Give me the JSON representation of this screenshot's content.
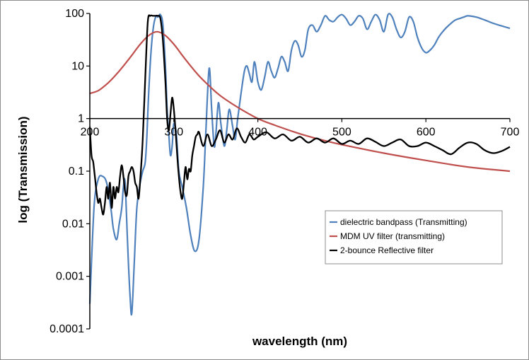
{
  "chart_data": {
    "type": "line",
    "title": "",
    "xlabel": "wavelength (nm)",
    "ylabel": "log (Transmission)",
    "xlim": [
      200,
      700
    ],
    "ylim": [
      0.0001,
      100
    ],
    "yscale": "log",
    "x_ticks": [
      "200",
      "300",
      "400",
      "500",
      "600",
      "700"
    ],
    "y_ticks": [
      "0.0001",
      "0.001",
      "0.01",
      "0.1",
      "1",
      "10",
      "100"
    ],
    "grid": false,
    "legend_position": "lower-right",
    "series": [
      {
        "name": "dielectric bandpass (Transmitting)",
        "color": "#4f81bd",
        "x": [
          200,
          205,
          210,
          215,
          220,
          225,
          228,
          232,
          235,
          238,
          240,
          242,
          245,
          248,
          250,
          253,
          256,
          260,
          263,
          266,
          268,
          270,
          273,
          276,
          279,
          281,
          284,
          287,
          290,
          292,
          294,
          296,
          298,
          300,
          303,
          306,
          310,
          315,
          320,
          325,
          330,
          335,
          338,
          342,
          345,
          348,
          350,
          353,
          356,
          360,
          363,
          366,
          370,
          373,
          376,
          380,
          384,
          387,
          390,
          393,
          396,
          400,
          404,
          408,
          412,
          416,
          420,
          424,
          428,
          432,
          436,
          440,
          444,
          448,
          452,
          456,
          460,
          465,
          470,
          475,
          480,
          485,
          490,
          495,
          500,
          505,
          510,
          515,
          520,
          525,
          530,
          535,
          540,
          545,
          550,
          555,
          560,
          565,
          570,
          575,
          580,
          585,
          590,
          595,
          600,
          605,
          610,
          615,
          620,
          625,
          630,
          635,
          640,
          645,
          650,
          660,
          670,
          680,
          690,
          700
        ],
        "y": [
          0.0003,
          0.02,
          0.07,
          0.08,
          0.06,
          0.02,
          0.008,
          0.005,
          0.01,
          0.02,
          0.05,
          0.06,
          0.004,
          0.0004,
          0.0002,
          0.002,
          0.02,
          0.06,
          0.1,
          0.15,
          0.5,
          3,
          20,
          60,
          90,
          85,
          95,
          60,
          10,
          1.5,
          0.5,
          0.2,
          0.3,
          0.8,
          0.5,
          0.1,
          0.05,
          0.02,
          0.006,
          0.003,
          0.005,
          0.05,
          0.5,
          9,
          1.5,
          0.3,
          0.5,
          2,
          0.8,
          0.3,
          0.6,
          1.5,
          0.7,
          0.4,
          1,
          3,
          8,
          10,
          7,
          5,
          12,
          5,
          3.5,
          6,
          12,
          8,
          6,
          9,
          15,
          12,
          8,
          20,
          30,
          25,
          15,
          20,
          50,
          60,
          45,
          60,
          90,
          75,
          70,
          85,
          95,
          80,
          60,
          70,
          90,
          80,
          50,
          70,
          95,
          75,
          45,
          95,
          85,
          50,
          35,
          45,
          85,
          70,
          35,
          22,
          18,
          20,
          25,
          35,
          45,
          55,
          65,
          75,
          80,
          85,
          90,
          85,
          75,
          65,
          58,
          52
        ]
      },
      {
        "name": "MDM UV filter (transmitting)",
        "color": "#c0504d",
        "x": [
          200,
          210,
          220,
          230,
          240,
          250,
          260,
          270,
          280,
          290,
          300,
          310,
          320,
          330,
          340,
          350,
          360,
          380,
          400,
          420,
          440,
          460,
          480,
          500,
          550,
          600,
          650,
          700
        ],
        "y": [
          3,
          3.4,
          4.5,
          6.5,
          10,
          16,
          26,
          38,
          45,
          38,
          26,
          16,
          10,
          6.5,
          4.5,
          3.2,
          2.4,
          1.5,
          1.0,
          0.75,
          0.58,
          0.46,
          0.38,
          0.32,
          0.22,
          0.16,
          0.12,
          0.1
        ]
      },
      {
        "name": "2-bounce Reflective filter",
        "color": "#000000",
        "x": [
          200,
          202,
          204,
          206,
          208,
          210,
          212,
          214,
          216,
          218,
          220,
          222,
          224,
          226,
          228,
          230,
          232,
          234,
          236,
          238,
          240,
          242,
          244,
          246,
          248,
          250,
          252,
          254,
          256,
          258,
          260,
          263,
          266,
          269,
          272,
          275,
          278,
          281,
          284,
          287,
          290,
          292,
          294,
          296,
          298,
          300,
          302,
          304,
          306,
          308,
          310,
          312,
          314,
          316,
          318,
          320,
          322,
          324,
          326,
          328,
          330,
          335,
          340,
          345,
          350,
          355,
          360,
          365,
          370,
          375,
          380,
          385,
          390,
          395,
          400,
          410,
          420,
          430,
          440,
          450,
          460,
          470,
          480,
          490,
          500,
          510,
          520,
          530,
          540,
          550,
          560,
          570,
          580,
          590,
          600,
          610,
          620,
          630,
          640,
          650,
          660,
          670,
          680,
          690,
          700
        ],
        "y": [
          0.7,
          0.2,
          0.15,
          0.08,
          0.04,
          0.025,
          0.03,
          0.02,
          0.015,
          0.025,
          0.05,
          0.03,
          0.06,
          0.02,
          0.05,
          0.03,
          0.05,
          0.04,
          0.08,
          0.13,
          0.08,
          0.04,
          0.035,
          0.08,
          0.1,
          0.12,
          0.1,
          0.06,
          0.05,
          0.03,
          0.07,
          0.4,
          6,
          70,
          90,
          90,
          90,
          90,
          80,
          30,
          5,
          1,
          0.6,
          1.2,
          2.5,
          1.5,
          0.6,
          0.2,
          0.08,
          0.04,
          0.03,
          0.06,
          0.12,
          0.07,
          0.11,
          0.1,
          0.2,
          0.3,
          0.45,
          0.5,
          0.55,
          0.3,
          0.5,
          0.3,
          0.4,
          0.6,
          0.35,
          0.5,
          0.4,
          0.65,
          0.45,
          0.35,
          0.5,
          0.4,
          0.45,
          0.55,
          0.42,
          0.5,
          0.38,
          0.45,
          0.35,
          0.42,
          0.35,
          0.42,
          0.33,
          0.38,
          0.33,
          0.42,
          0.36,
          0.3,
          0.35,
          0.4,
          0.3,
          0.3,
          0.35,
          0.3,
          0.25,
          0.21,
          0.28,
          0.35,
          0.33,
          0.25,
          0.22,
          0.24,
          0.29
        ]
      }
    ]
  }
}
